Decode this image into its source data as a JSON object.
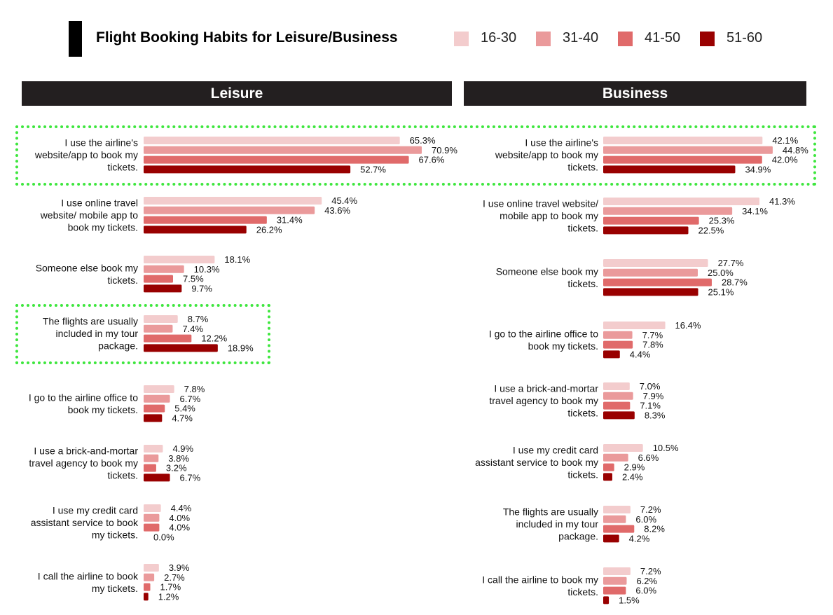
{
  "header": {
    "title": "Flight Booking Habits for Leisure/Business"
  },
  "legend": [
    {
      "label": "16-30",
      "color": "#f3cccd"
    },
    {
      "label": "31-40",
      "color": "#ea9a9b"
    },
    {
      "label": "41-50",
      "color": "#e06a6a"
    },
    {
      "label": "51-60",
      "color": "#990000"
    }
  ],
  "panels": {
    "leisure": {
      "label": "Leisure"
    },
    "business": {
      "label": "Business"
    }
  },
  "chart_data": [
    {
      "type": "bar",
      "orientation": "horizontal",
      "title": "Leisure",
      "series_names": [
        "16-30",
        "31-40",
        "41-50",
        "51-60"
      ],
      "highlighted_groups": [
        0,
        3
      ],
      "groups": [
        {
          "label": [
            "I use the airline's",
            "website/app to book my",
            "tickets."
          ],
          "values": [
            65.3,
            70.9,
            67.6,
            52.7
          ]
        },
        {
          "label": [
            "I use online travel",
            "website/ mobile app to",
            "book my tickets."
          ],
          "values": [
            45.4,
            43.6,
            31.4,
            26.2
          ]
        },
        {
          "label": [
            "Someone else book my",
            "tickets."
          ],
          "values": [
            18.1,
            10.3,
            7.5,
            9.7
          ]
        },
        {
          "label": [
            "The flights are usually",
            "included in my tour",
            "package."
          ],
          "values": [
            8.7,
            7.4,
            12.2,
            18.9
          ]
        },
        {
          "label": [
            "I go to the airline office to",
            "book my tickets."
          ],
          "values": [
            7.8,
            6.7,
            5.4,
            4.7
          ]
        },
        {
          "label": [
            "I use a brick-and-mortar",
            "travel agency to book my",
            "tickets."
          ],
          "values": [
            4.9,
            3.8,
            3.2,
            6.7
          ]
        },
        {
          "label": [
            "I use my credit card",
            "assistant service to book",
            "my tickets."
          ],
          "values": [
            4.4,
            4.0,
            4.0,
            0.0
          ]
        },
        {
          "label": [
            "I call the airline to book",
            "my tickets."
          ],
          "values": [
            3.9,
            2.7,
            1.7,
            1.2
          ]
        }
      ]
    },
    {
      "type": "bar",
      "orientation": "horizontal",
      "title": "Business",
      "series_names": [
        "16-30",
        "31-40",
        "41-50",
        "51-60"
      ],
      "highlighted_groups": [
        0
      ],
      "groups": [
        {
          "label": [
            "I use the airline's",
            "website/app to book my",
            "tickets."
          ],
          "values": [
            42.1,
            44.8,
            42.0,
            34.9
          ]
        },
        {
          "label": [
            "I use online travel website/",
            "mobile app to book my",
            "tickets."
          ],
          "values": [
            41.3,
            34.1,
            25.3,
            22.5
          ]
        },
        {
          "label": [
            "Someone else book my",
            "tickets."
          ],
          "values": [
            27.7,
            25.0,
            28.7,
            25.1
          ]
        },
        {
          "label": [
            "I go to the airline office to",
            "book my tickets."
          ],
          "values": [
            16.4,
            7.7,
            7.8,
            4.4
          ]
        },
        {
          "label": [
            "I use a brick-and-mortar",
            "travel agency to book my",
            "tickets."
          ],
          "values": [
            7.0,
            7.9,
            7.1,
            8.3
          ]
        },
        {
          "label": [
            "I use my credit card",
            "assistant service to book my",
            "tickets."
          ],
          "values": [
            10.5,
            6.6,
            2.9,
            2.4
          ]
        },
        {
          "label": [
            "The flights are usually",
            "included in my tour",
            "package."
          ],
          "values": [
            7.2,
            6.0,
            8.2,
            4.2
          ]
        },
        {
          "label": [
            "I call the airline to book my",
            "tickets."
          ],
          "values": [
            7.2,
            6.2,
            6.0,
            1.5
          ]
        }
      ]
    }
  ]
}
